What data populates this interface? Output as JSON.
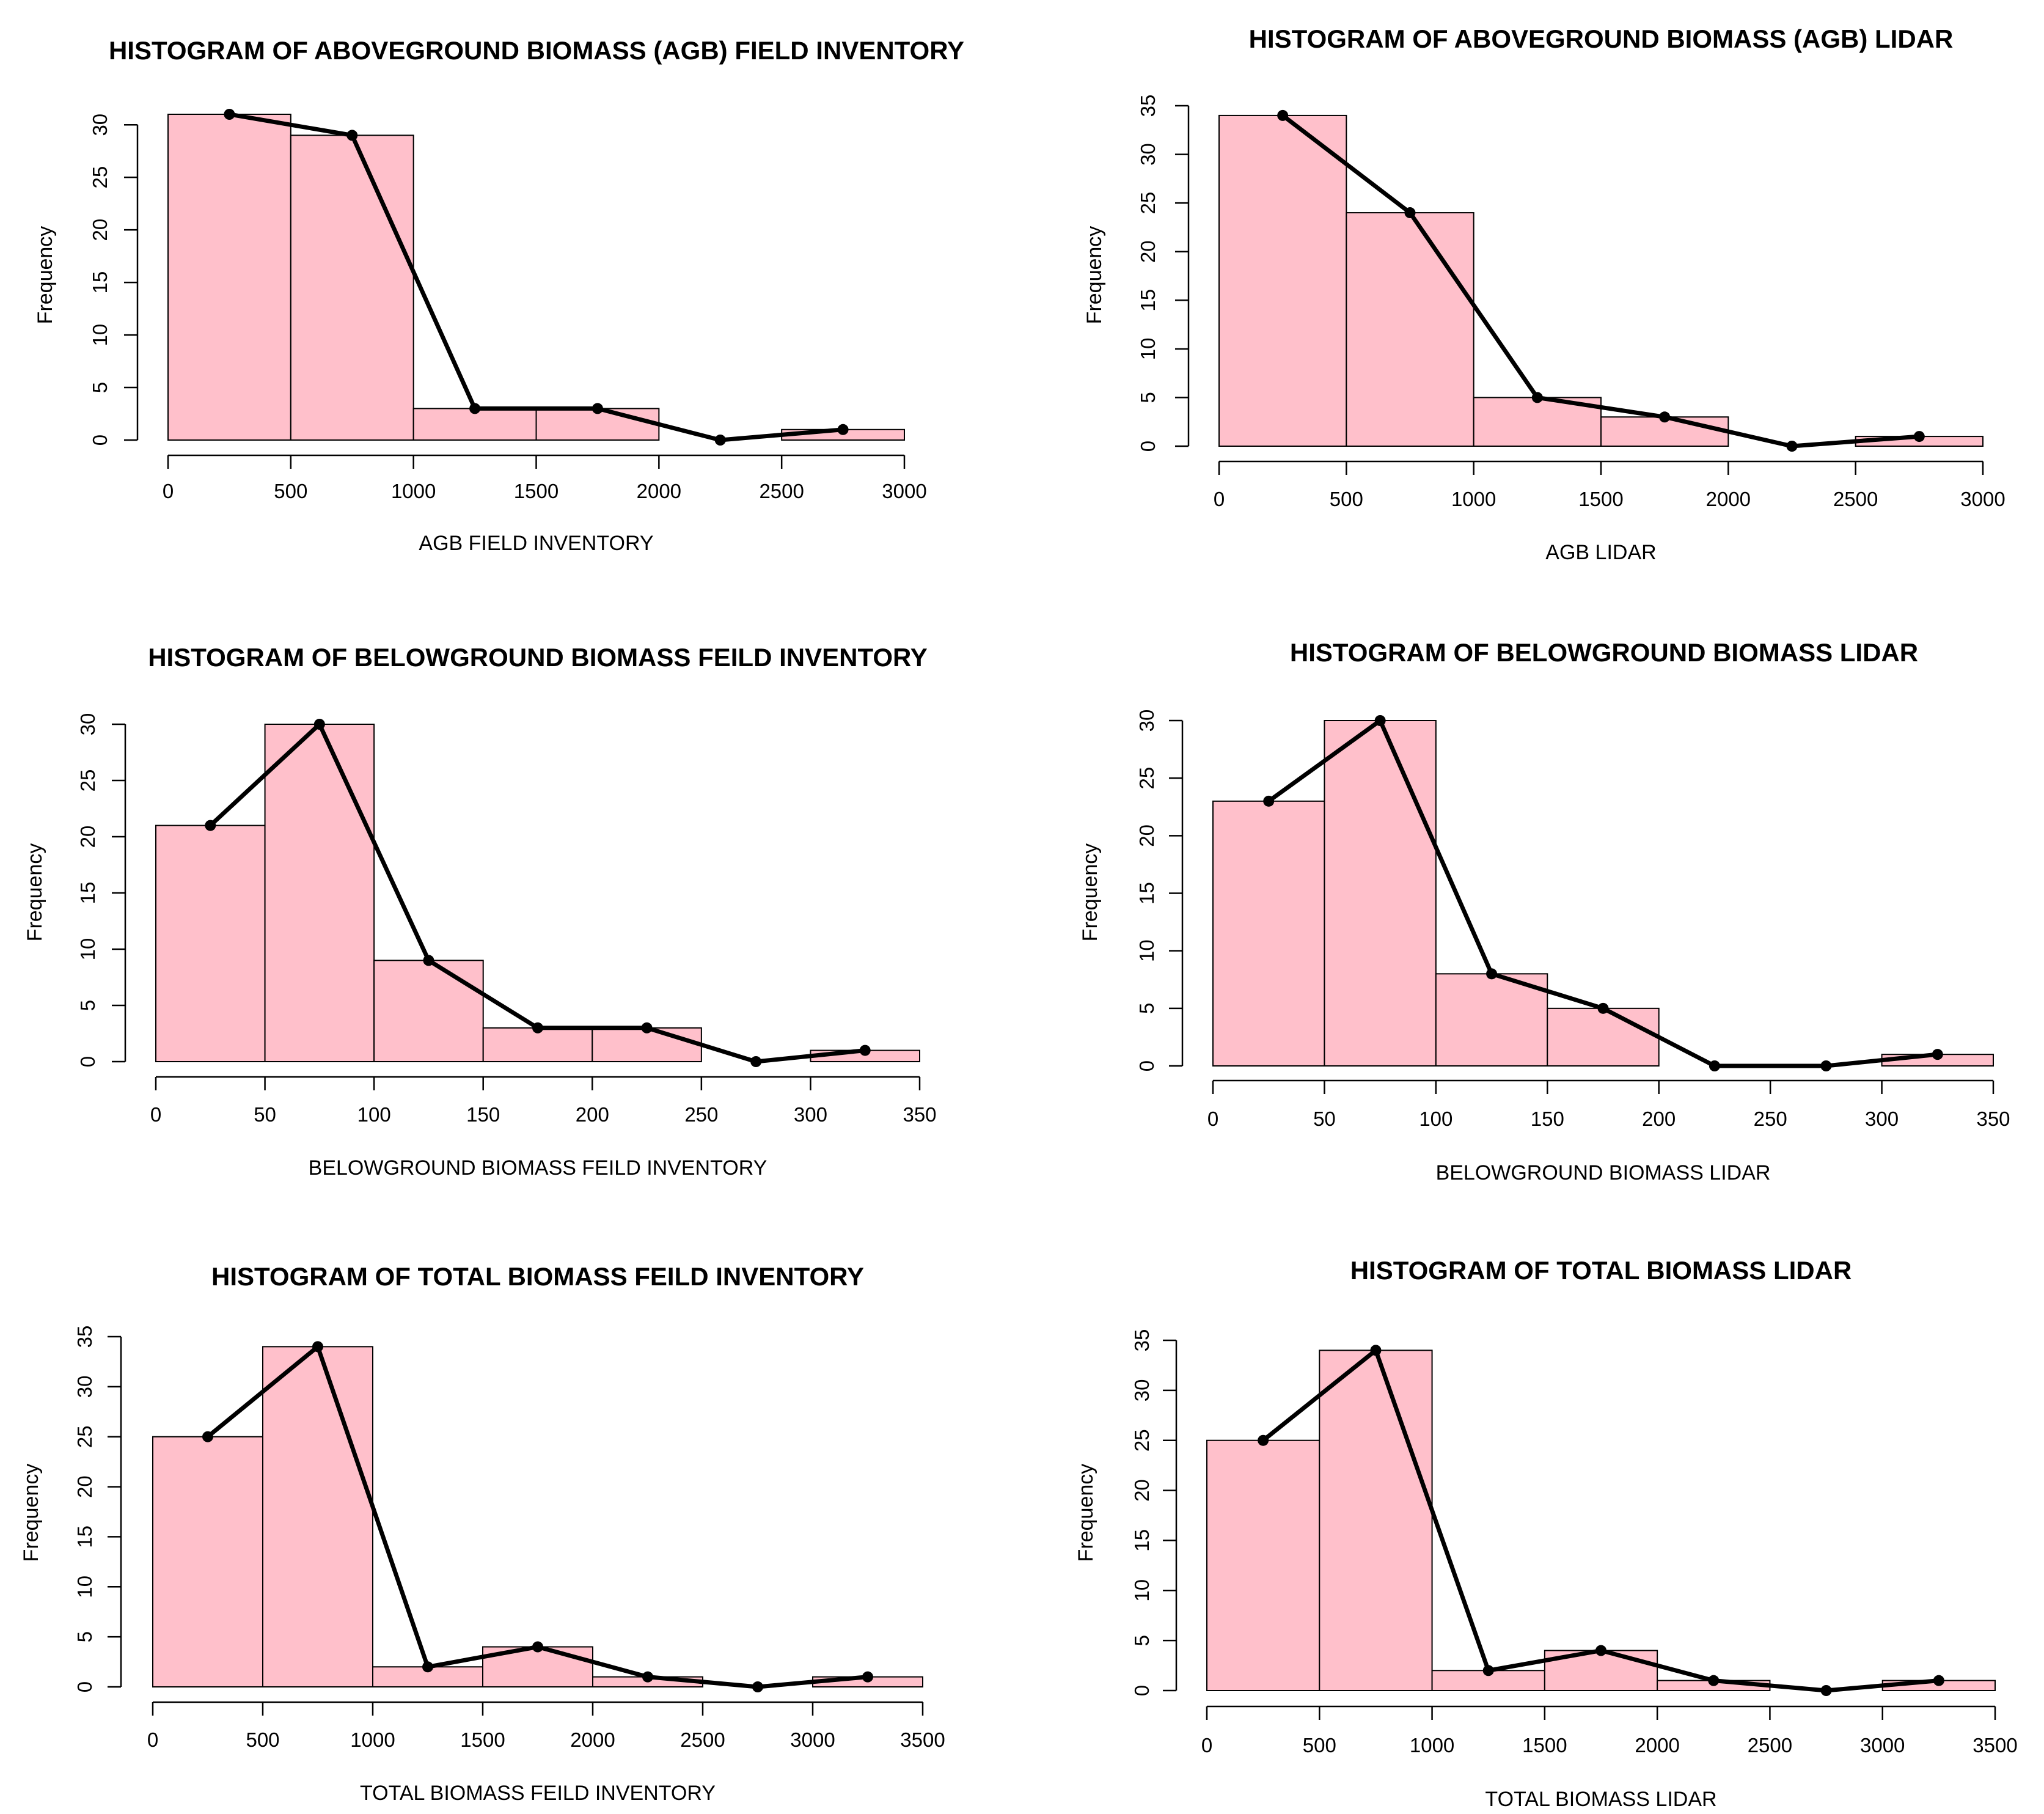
{
  "chart_data": [
    {
      "type": "bar",
      "title": "HISTOGRAM OF ABOVEGROUND BIOMASS (AGB) FIELD INVENTORY",
      "xlabel": "AGB FIELD INVENTORY",
      "ylabel": "Frequency",
      "bin_edges": [
        0,
        500,
        1000,
        1500,
        2000,
        2500,
        3000
      ],
      "values": [
        31,
        29,
        3,
        3,
        0,
        1
      ],
      "polygon": [
        [
          250,
          31
        ],
        [
          750,
          29
        ],
        [
          1250,
          3
        ],
        [
          1750,
          3
        ],
        [
          2250,
          0
        ],
        [
          2750,
          1
        ]
      ],
      "xticks": [
        0,
        500,
        1000,
        1500,
        2000,
        2500,
        3000
      ],
      "xtick_labels": [
        "0",
        "500",
        "1000",
        "1500",
        "2000",
        "2500",
        "3000"
      ],
      "yticks": [
        0,
        5,
        10,
        15,
        20,
        25,
        30
      ],
      "ytick_labels": [
        "0",
        "5",
        "10",
        "15",
        "20",
        "25",
        "30"
      ],
      "xlim": [
        0,
        3000
      ],
      "ylim": [
        0,
        31
      ],
      "grid": false
    },
    {
      "type": "bar",
      "title": "HISTOGRAM OF ABOVEGROUND BIOMASS (AGB) LIDAR",
      "xlabel": "AGB LIDAR",
      "ylabel": "Frequency",
      "bin_edges": [
        0,
        500,
        1000,
        1500,
        2000,
        2500,
        3000
      ],
      "values": [
        34,
        24,
        5,
        3,
        0,
        1
      ],
      "polygon": [
        [
          250,
          34
        ],
        [
          750,
          24
        ],
        [
          1250,
          5
        ],
        [
          1750,
          3
        ],
        [
          2250,
          0
        ],
        [
          2750,
          1
        ]
      ],
      "xticks": [
        0,
        500,
        1000,
        1500,
        2000,
        2500,
        3000
      ],
      "xtick_labels": [
        "0",
        "500",
        "1000",
        "1500",
        "2000",
        "2500",
        "3000"
      ],
      "yticks": [
        0,
        5,
        10,
        15,
        20,
        25,
        30,
        35
      ],
      "ytick_labels": [
        "0",
        "5",
        "10",
        "15",
        "20",
        "25",
        "30",
        "35"
      ],
      "xlim": [
        0,
        3000
      ],
      "ylim": [
        0,
        35
      ],
      "grid": false
    },
    {
      "type": "bar",
      "title": "HISTOGRAM OF BELOWGROUND BIOMASS FEILD INVENTORY",
      "xlabel": "BELOWGROUND BIOMASS FEILD INVENTORY",
      "ylabel": "Frequency",
      "bin_edges": [
        0,
        50,
        100,
        150,
        200,
        250,
        300,
        350
      ],
      "values": [
        21,
        30,
        9,
        3,
        3,
        0,
        1
      ],
      "polygon": [
        [
          25,
          21
        ],
        [
          75,
          30
        ],
        [
          125,
          9
        ],
        [
          175,
          3
        ],
        [
          225,
          3
        ],
        [
          275,
          0
        ],
        [
          325,
          1
        ]
      ],
      "xticks": [
        0,
        50,
        100,
        150,
        200,
        250,
        300,
        350
      ],
      "xtick_labels": [
        "0",
        "50",
        "100",
        "150",
        "200",
        "250",
        "300",
        "350"
      ],
      "yticks": [
        0,
        5,
        10,
        15,
        20,
        25,
        30
      ],
      "ytick_labels": [
        "0",
        "5",
        "10",
        "15",
        "20",
        "25",
        "30"
      ],
      "xlim": [
        0,
        350
      ],
      "ylim": [
        0,
        30
      ],
      "grid": false
    },
    {
      "type": "bar",
      "title": "HISTOGRAM OF BELOWGROUND BIOMASS LIDAR",
      "xlabel": "BELOWGROUND BIOMASS LIDAR",
      "ylabel": "Frequency",
      "bin_edges": [
        0,
        50,
        100,
        150,
        200,
        250,
        300,
        350
      ],
      "values": [
        23,
        30,
        8,
        5,
        0,
        0,
        1
      ],
      "polygon": [
        [
          25,
          23
        ],
        [
          75,
          30
        ],
        [
          125,
          8
        ],
        [
          175,
          5
        ],
        [
          225,
          0
        ],
        [
          275,
          0
        ],
        [
          325,
          1
        ]
      ],
      "xticks": [
        0,
        50,
        100,
        150,
        200,
        250,
        300,
        350
      ],
      "xtick_labels": [
        "0",
        "50",
        "100",
        "150",
        "200",
        "250",
        "300",
        "350"
      ],
      "yticks": [
        0,
        5,
        10,
        15,
        20,
        25,
        30
      ],
      "ytick_labels": [
        "0",
        "5",
        "10",
        "15",
        "20",
        "25",
        "30"
      ],
      "xlim": [
        0,
        350
      ],
      "ylim": [
        0,
        30
      ],
      "grid": false
    },
    {
      "type": "bar",
      "title": "HISTOGRAM OF TOTAL BIOMASS FEILD INVENTORY",
      "xlabel": "TOTAL BIOMASS FEILD INVENTORY",
      "ylabel": "Frequency",
      "bin_edges": [
        0,
        500,
        1000,
        1500,
        2000,
        2500,
        3000,
        3500
      ],
      "values": [
        25,
        34,
        2,
        4,
        1,
        0,
        1
      ],
      "polygon": [
        [
          250,
          25
        ],
        [
          750,
          34
        ],
        [
          1250,
          2
        ],
        [
          1750,
          4
        ],
        [
          2250,
          1
        ],
        [
          2750,
          0
        ],
        [
          3250,
          1
        ]
      ],
      "xticks": [
        0,
        500,
        1000,
        1500,
        2000,
        2500,
        3000,
        3500
      ],
      "xtick_labels": [
        "0",
        "500",
        "1000",
        "1500",
        "2000",
        "2500",
        "3000",
        "3500"
      ],
      "yticks": [
        0,
        5,
        10,
        15,
        20,
        25,
        30,
        35
      ],
      "ytick_labels": [
        "0",
        "5",
        "10",
        "15",
        "20",
        "25",
        "30",
        "35"
      ],
      "xlim": [
        0,
        3500
      ],
      "ylim": [
        0,
        35
      ],
      "grid": false
    },
    {
      "type": "bar",
      "title": "HISTOGRAM OF TOTAL BIOMASS LIDAR",
      "xlabel": "TOTAL BIOMASS LIDAR",
      "ylabel": "Frequency",
      "bin_edges": [
        0,
        500,
        1000,
        1500,
        2000,
        2500,
        3000,
        3500
      ],
      "values": [
        25,
        34,
        2,
        4,
        1,
        0,
        1
      ],
      "polygon": [
        [
          250,
          25
        ],
        [
          750,
          34
        ],
        [
          1250,
          2
        ],
        [
          1750,
          4
        ],
        [
          2250,
          1
        ],
        [
          2750,
          0
        ],
        [
          3250,
          1
        ]
      ],
      "xticks": [
        0,
        500,
        1000,
        1500,
        2000,
        2500,
        3000,
        3500
      ],
      "xtick_labels": [
        "0",
        "500",
        "1000",
        "1500",
        "2000",
        "2500",
        "3000",
        "3500"
      ],
      "yticks": [
        0,
        5,
        10,
        15,
        20,
        25,
        30,
        35
      ],
      "ytick_labels": [
        "0",
        "5",
        "10",
        "15",
        "20",
        "25",
        "30",
        "35"
      ],
      "xlim": [
        0,
        3500
      ],
      "ylim": [
        0,
        35
      ],
      "grid": false
    }
  ],
  "colors": {
    "bar_fill": "#ffc0cb",
    "stroke": "#000000",
    "background": "#ffffff"
  }
}
